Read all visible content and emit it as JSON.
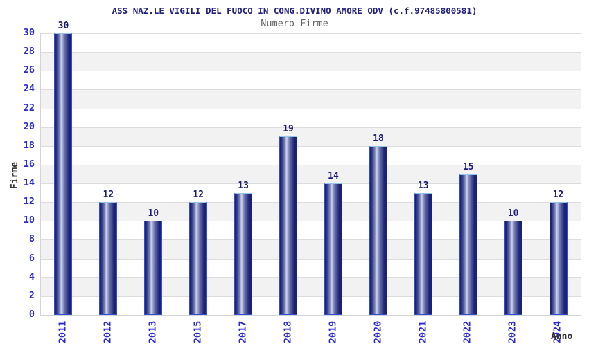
{
  "chart_data": {
    "type": "bar",
    "title": "ASS NAZ.LE VIGILI DEL FUOCO IN CONG.DIVINO AMORE ODV (c.f.97485800581)",
    "subtitle": "Numero Firme",
    "xlabel": "Anno",
    "ylabel": "Firme",
    "categories": [
      "2011",
      "2012",
      "2013",
      "2015",
      "2017",
      "2018",
      "2019",
      "2020",
      "2021",
      "2022",
      "2023",
      "2024"
    ],
    "values": [
      30,
      12,
      10,
      12,
      13,
      19,
      14,
      18,
      13,
      15,
      10,
      12
    ],
    "ylim": [
      0,
      30
    ],
    "ytick_step": 2,
    "grid": true,
    "legend": "none",
    "colors": {
      "title": "#20207e",
      "subtitle": "#666666",
      "axis_title": "#333333",
      "tick_label": "#2b2bd0",
      "value_label": "#1c1c78",
      "bar_dark": "#1b2175",
      "bar_mid": "#6a74ac",
      "bar_light": "#ccd2e9",
      "bar_border_side": "#2f4ecf",
      "bar_border_top": "#96c5ec",
      "band_gray": "#f2f2f2",
      "band_white": "#ffffff",
      "gridline": "#dcdcdc",
      "plot_border": "#d4d4d4",
      "background": "#ffffff"
    }
  }
}
